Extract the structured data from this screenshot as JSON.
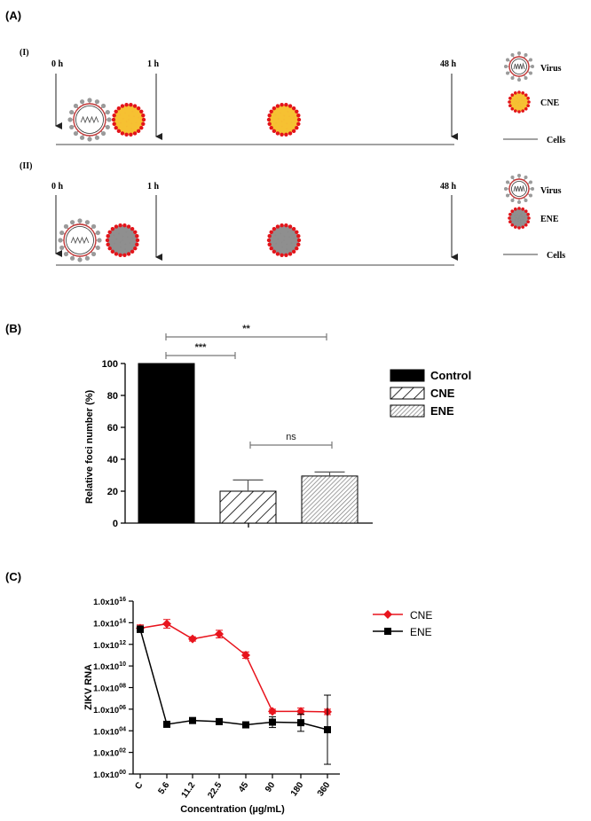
{
  "panel_a": {
    "label": "(A)",
    "rows": [
      {
        "id": "I",
        "label": "(I)",
        "times": [
          "0 h",
          "1 h",
          "48 h"
        ],
        "legend": {
          "virus": "Virus",
          "particle": "CNE",
          "cells": "Cells"
        },
        "particle_color": "#f6c132"
      },
      {
        "id": "II",
        "label": "(II)",
        "times": [
          "0 h",
          "1 h",
          "48 h"
        ],
        "legend": {
          "virus": "Virus",
          "particle": "ENE",
          "cells": "Cells"
        },
        "particle_color": "#8f8f8f"
      }
    ]
  },
  "panel_b": {
    "label": "(B)",
    "significance": [
      "***",
      "**",
      "ns"
    ]
  },
  "panel_c": {
    "label": "(C)"
  },
  "chart_data": [
    {
      "type": "bar",
      "ylabel": "Relative foci number (%)",
      "ylim": [
        0,
        100
      ],
      "yticks": [
        "0",
        "20",
        "40",
        "60",
        "80",
        "100"
      ],
      "categories": [
        "Control",
        "CNE",
        "ENE"
      ],
      "values": [
        100,
        20,
        29.5
      ],
      "errors": [
        0,
        7,
        2.5
      ],
      "legend": [
        "Control",
        "CNE",
        "ENE"
      ],
      "legend_position": "right",
      "colors": {
        "control": "#000000",
        "hatch_line": "#000000",
        "fine_hatch": "#777777"
      }
    },
    {
      "type": "line",
      "xlabel": "Concentration (µg/mL)",
      "ylabel": "ZIKV RNA",
      "y_scale": "log10",
      "ylim_exponent": [
        0,
        16
      ],
      "ytick_labels": [
        "1.0x10",
        "1.0x10",
        "1.0x10",
        "1.0x10",
        "1.0x10",
        "1.0x10",
        "1.0x10",
        "1.0x10",
        "1.0x10"
      ],
      "ytick_exponents": [
        "00",
        "02",
        "04",
        "06",
        "08",
        "10",
        "12",
        "14",
        "16"
      ],
      "categories": [
        "C",
        "5.6",
        "11.2",
        "22.5",
        "45",
        "90",
        "180",
        "360"
      ],
      "series": [
        {
          "name": "CNE",
          "color": "#e8141d",
          "marker": "diamond",
          "log_values": [
            13.5,
            13.9,
            12.5,
            12.95,
            11.0,
            5.8,
            5.8,
            5.75
          ],
          "log_error": [
            0.3,
            0.4,
            0.2,
            0.35,
            0.3,
            0.2,
            0.3,
            0.25
          ]
        },
        {
          "name": "ENE",
          "color": "#000000",
          "marker": "square",
          "log_values": [
            13.4,
            4.6,
            4.95,
            4.85,
            4.55,
            4.8,
            4.75,
            4.1
          ],
          "log_error": [
            0.3,
            0.1,
            0.1,
            0.1,
            0.1,
            0.5,
            0.8,
            3.2
          ]
        }
      ],
      "legend_position": "right"
    }
  ]
}
